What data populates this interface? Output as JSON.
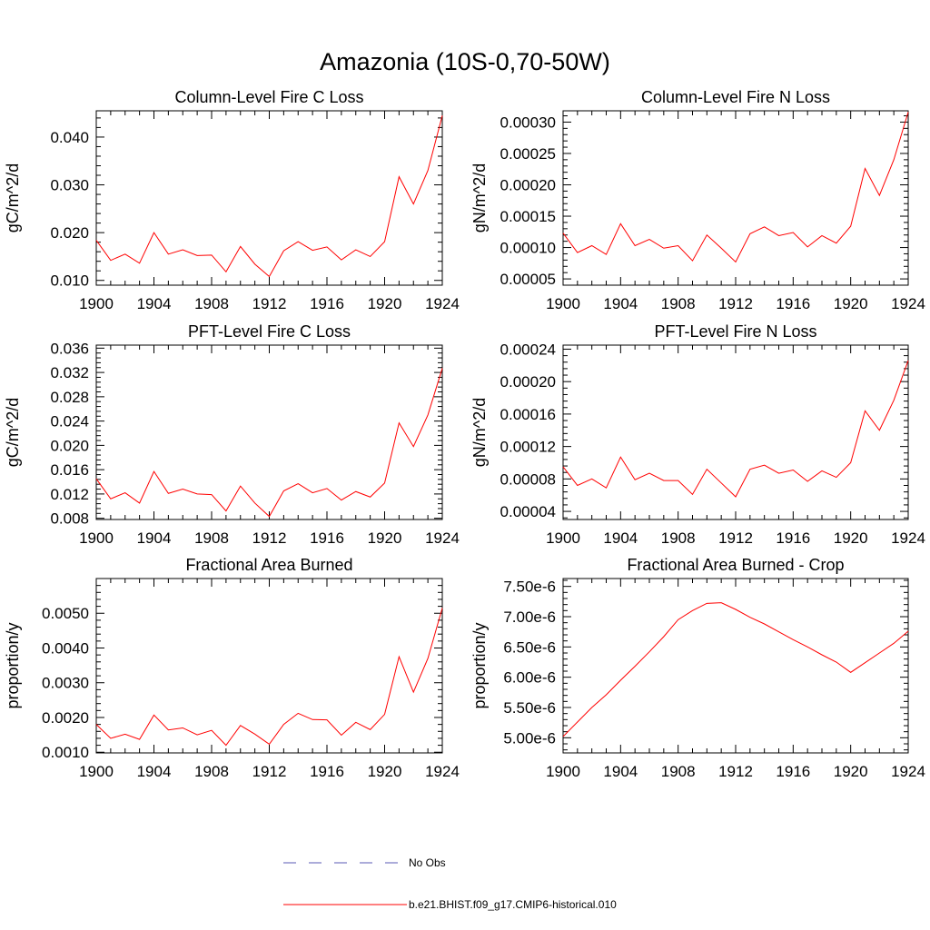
{
  "figure": {
    "title": "Amazonia (10S-0,70-50W)"
  },
  "legend": {
    "entries": [
      {
        "label": "No Obs",
        "color": "#5a5ab4",
        "dash": "dashed"
      },
      {
        "label": "b.e21.BHIST.f09_g17.CMIP6-historical.010",
        "color": "#ff0000",
        "dash": "solid"
      }
    ]
  },
  "chart_data": [
    {
      "type": "line",
      "title": "Column-Level Fire C Loss",
      "ylabel": "gC/m^2/d",
      "xlim": [
        1900,
        1924
      ],
      "ylim": [
        0.009,
        0.0455
      ],
      "xticks": [
        1900,
        1904,
        1908,
        1912,
        1916,
        1920,
        1924
      ],
      "xtick_labels": [
        "1900",
        "1904",
        "1908",
        "1912",
        "1916",
        "1920",
        "1924"
      ],
      "yticks": [
        0.01,
        0.02,
        0.03,
        0.04
      ],
      "ytick_labels": [
        "0.010",
        "0.020",
        "0.030",
        "0.040"
      ],
      "x": [
        1900,
        1901,
        1902,
        1903,
        1904,
        1905,
        1906,
        1907,
        1908,
        1909,
        1910,
        1911,
        1912,
        1913,
        1914,
        1915,
        1916,
        1917,
        1918,
        1919,
        1920,
        1921,
        1922,
        1923,
        1924
      ],
      "series": [
        {
          "name": "b.e21.BHIST.f09_g17.CMIP6-historical.010",
          "color": "#ff0000",
          "values": [
            0.0184,
            0.0142,
            0.0155,
            0.0136,
            0.02,
            0.0155,
            0.0164,
            0.0152,
            0.0153,
            0.0118,
            0.0171,
            0.0134,
            0.0108,
            0.0162,
            0.0181,
            0.0163,
            0.017,
            0.0143,
            0.0164,
            0.015,
            0.0181,
            0.0317,
            0.026,
            0.033,
            0.0445
          ]
        }
      ]
    },
    {
      "type": "line",
      "title": "Column-Level Fire N Loss",
      "ylabel": "gN/m^2/d",
      "xlim": [
        1900,
        1924
      ],
      "ylim": [
        4e-05,
        0.000318
      ],
      "xticks": [
        1900,
        1904,
        1908,
        1912,
        1916,
        1920,
        1924
      ],
      "xtick_labels": [
        "1900",
        "1904",
        "1908",
        "1912",
        "1916",
        "1920",
        "1924"
      ],
      "yticks": [
        5e-05,
        0.0001,
        0.00015,
        0.0002,
        0.00025,
        0.0003
      ],
      "ytick_labels": [
        "0.00005",
        "0.00010",
        "0.00015",
        "0.00020",
        "0.00025",
        "0.00030"
      ],
      "x": [
        1900,
        1901,
        1902,
        1903,
        1904,
        1905,
        1906,
        1907,
        1908,
        1909,
        1910,
        1911,
        1912,
        1913,
        1914,
        1915,
        1916,
        1917,
        1918,
        1919,
        1920,
        1921,
        1922,
        1923,
        1924
      ],
      "series": [
        {
          "name": "b.e21.BHIST.f09_g17.CMIP6-historical.010",
          "color": "#ff0000",
          "values": [
            0.000123,
            9.2e-05,
            0.000103,
            8.9e-05,
            0.000138,
            0.000103,
            0.000113,
            9.9e-05,
            0.000103,
            7.9e-05,
            0.00012,
            9.9e-05,
            7.7e-05,
            0.000122,
            0.000133,
            0.000119,
            0.000124,
            0.000101,
            0.000119,
            0.000107,
            0.000134,
            0.000226,
            0.000183,
            0.00024,
            0.000316
          ]
        }
      ]
    },
    {
      "type": "line",
      "title": "PFT-Level Fire C Loss",
      "ylabel": "gC/m^2/d",
      "xlim": [
        1900,
        1924
      ],
      "ylim": [
        0.0078,
        0.0365
      ],
      "xticks": [
        1900,
        1904,
        1908,
        1912,
        1916,
        1920,
        1924
      ],
      "xtick_labels": [
        "1900",
        "1904",
        "1908",
        "1912",
        "1916",
        "1920",
        "1924"
      ],
      "yticks": [
        0.008,
        0.012,
        0.016,
        0.02,
        0.024,
        0.028,
        0.032,
        0.036
      ],
      "ytick_labels": [
        "0.008",
        "0.012",
        "0.016",
        "0.020",
        "0.024",
        "0.028",
        "0.032",
        "0.036"
      ],
      "x": [
        1900,
        1901,
        1902,
        1903,
        1904,
        1905,
        1906,
        1907,
        1908,
        1909,
        1910,
        1911,
        1912,
        1913,
        1914,
        1915,
        1916,
        1917,
        1918,
        1919,
        1920,
        1921,
        1922,
        1923,
        1924
      ],
      "series": [
        {
          "name": "b.e21.BHIST.f09_g17.CMIP6-historical.010",
          "color": "#ff0000",
          "values": [
            0.0145,
            0.0112,
            0.0122,
            0.0105,
            0.0157,
            0.0121,
            0.0128,
            0.012,
            0.0119,
            0.0092,
            0.0133,
            0.0105,
            0.0083,
            0.0125,
            0.0137,
            0.0122,
            0.0129,
            0.011,
            0.0124,
            0.0115,
            0.0138,
            0.0237,
            0.0198,
            0.025,
            0.0327
          ]
        }
      ]
    },
    {
      "type": "line",
      "title": "PFT-Level Fire N Loss",
      "ylabel": "gN/m^2/d",
      "xlim": [
        1900,
        1924
      ],
      "ylim": [
        3e-05,
        0.000245
      ],
      "xticks": [
        1900,
        1904,
        1908,
        1912,
        1916,
        1920,
        1924
      ],
      "xtick_labels": [
        "1900",
        "1904",
        "1908",
        "1912",
        "1916",
        "1920",
        "1924"
      ],
      "yticks": [
        4e-05,
        8e-05,
        0.00012,
        0.00016,
        0.0002,
        0.00024
      ],
      "ytick_labels": [
        "0.00004",
        "0.00008",
        "0.00012",
        "0.00016",
        "0.00020",
        "0.00024"
      ],
      "x": [
        1900,
        1901,
        1902,
        1903,
        1904,
        1905,
        1906,
        1907,
        1908,
        1909,
        1910,
        1911,
        1912,
        1913,
        1914,
        1915,
        1916,
        1917,
        1918,
        1919,
        1920,
        1921,
        1922,
        1923,
        1924
      ],
      "series": [
        {
          "name": "b.e21.BHIST.f09_g17.CMIP6-historical.010",
          "color": "#ff0000",
          "values": [
            9.5e-05,
            7.2e-05,
            8e-05,
            6.9e-05,
            0.000107,
            7.9e-05,
            8.7e-05,
            7.8e-05,
            7.8e-05,
            6.1e-05,
            9.2e-05,
            7.5e-05,
            5.8e-05,
            9.2e-05,
            9.7e-05,
            8.7e-05,
            9.1e-05,
            7.7e-05,
            9e-05,
            8.2e-05,
            0.0001,
            0.000164,
            0.00014,
            0.000177,
            0.000226
          ]
        }
      ]
    },
    {
      "type": "line",
      "title": "Fractional Area Burned",
      "ylabel": "proportion/y",
      "xlim": [
        1900,
        1924
      ],
      "ylim": [
        0.00098,
        0.006
      ],
      "xticks": [
        1900,
        1904,
        1908,
        1912,
        1916,
        1920,
        1924
      ],
      "xtick_labels": [
        "1900",
        "1904",
        "1908",
        "1912",
        "1916",
        "1920",
        "1924"
      ],
      "yticks": [
        0.001,
        0.002,
        0.003,
        0.004,
        0.005
      ],
      "ytick_labels": [
        "0.0010",
        "0.0020",
        "0.0030",
        "0.0040",
        "0.0050"
      ],
      "x": [
        1900,
        1901,
        1902,
        1903,
        1904,
        1905,
        1906,
        1907,
        1908,
        1909,
        1910,
        1911,
        1912,
        1913,
        1914,
        1915,
        1916,
        1917,
        1918,
        1919,
        1920,
        1921,
        1922,
        1923,
        1924
      ],
      "series": [
        {
          "name": "b.e21.BHIST.f09_g17.CMIP6-historical.010",
          "color": "#ff0000",
          "values": [
            0.0018,
            0.0014,
            0.00152,
            0.00137,
            0.00207,
            0.00164,
            0.0017,
            0.0015,
            0.00163,
            0.0012,
            0.00177,
            0.00152,
            0.00123,
            0.0018,
            0.00212,
            0.00194,
            0.00193,
            0.00149,
            0.00186,
            0.00165,
            0.00209,
            0.00375,
            0.00273,
            0.0037,
            0.00515
          ]
        }
      ]
    },
    {
      "type": "line",
      "title": "Fractional Area Burned - Crop",
      "ylabel": "proportion/y",
      "xlim": [
        1900,
        1924
      ],
      "ylim": [
        4.75e-06,
        7.63e-06
      ],
      "xticks": [
        1900,
        1904,
        1908,
        1912,
        1916,
        1920,
        1924
      ],
      "xtick_labels": [
        "1900",
        "1904",
        "1908",
        "1912",
        "1916",
        "1920",
        "1924"
      ],
      "yticks": [
        5e-06,
        5.5e-06,
        6e-06,
        6.5e-06,
        7e-06,
        7.5e-06
      ],
      "ytick_labels": [
        "5.00e-6",
        "5.50e-6",
        "6.00e-6",
        "6.50e-6",
        "7.00e-6",
        "7.50e-6"
      ],
      "x": [
        1900,
        1901,
        1902,
        1903,
        1904,
        1905,
        1906,
        1907,
        1908,
        1909,
        1910,
        1911,
        1912,
        1913,
        1914,
        1915,
        1916,
        1917,
        1918,
        1919,
        1920,
        1921,
        1922,
        1923,
        1924
      ],
      "series": [
        {
          "name": "b.e21.BHIST.f09_g17.CMIP6-historical.010",
          "color": "#ff0000",
          "values": [
            5.02e-06,
            5.26e-06,
            5.5e-06,
            5.71e-06,
            5.95e-06,
            6.18e-06,
            6.42e-06,
            6.67e-06,
            6.95e-06,
            7.1e-06,
            7.22e-06,
            7.23e-06,
            7.12e-06,
            6.99e-06,
            6.88e-06,
            6.75e-06,
            6.62e-06,
            6.5e-06,
            6.37e-06,
            6.25e-06,
            6.08e-06,
            6.24e-06,
            6.4e-06,
            6.56e-06,
            6.76e-06
          ]
        }
      ]
    }
  ]
}
